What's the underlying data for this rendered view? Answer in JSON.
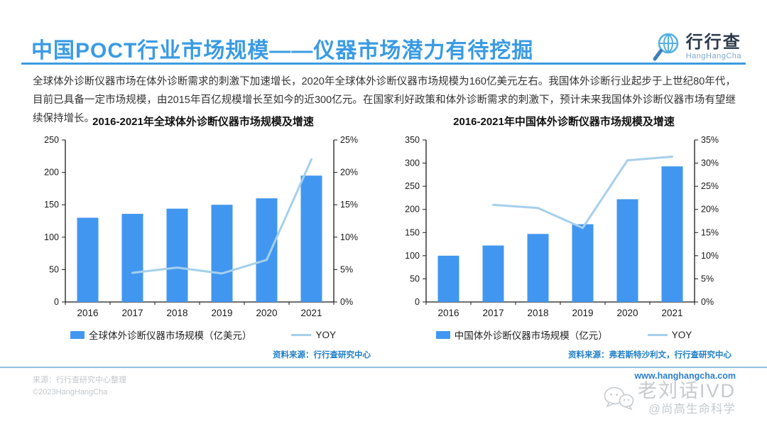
{
  "header": {
    "title": "中国POCT行业市场规模——仪器市场潜力有待挖掘",
    "logo_name": "行行查",
    "logo_sub": "HangHangCha"
  },
  "intro": "全球体外诊断仪器市场在体外诊断需求的刺激下加速增长，2020年全球体外诊断仪器市场规模为160亿美元左右。我国体外诊断行业起步于上世纪80年代，目前已具备一定市场规模，由2015年百亿规模增长至如今的近300亿元。在国家利好政策和体外诊断需求的刺激下，预计未来我国体外诊断仪器市场有望继续保持增长。",
  "palette": {
    "bar": "#4197f0",
    "line": "#a6cfec",
    "accent": "#3a9be4",
    "source_blue": "#1e7ec8",
    "axis": "#1a1a1a"
  },
  "chart_data": [
    {
      "type": "bar",
      "title": "2016-2021年全球体外诊断仪器市场规模及增速",
      "categories": [
        "2016",
        "2017",
        "2018",
        "2019",
        "2020",
        "2021"
      ],
      "series": [
        {
          "name": "全球体外诊断仪器市场规模（亿美元）",
          "kind": "bar",
          "axis": "left",
          "values": [
            130,
            136,
            144,
            150,
            160,
            195
          ]
        },
        {
          "name": "YOY",
          "kind": "line",
          "axis": "right",
          "values": [
            null,
            4.5,
            5.3,
            4.4,
            6.5,
            22
          ]
        }
      ],
      "left_axis": {
        "min": 0,
        "max": 250,
        "step": 50,
        "suffix": ""
      },
      "right_axis": {
        "min": 0,
        "max": 25,
        "step": 5,
        "suffix": "%"
      },
      "grid": false,
      "legend_position": "bottom",
      "source": "资料来源：行行查研究中心"
    },
    {
      "type": "bar",
      "title": "2016-2021年中国体外诊断仪器市场规模及增速",
      "categories": [
        "2016",
        "2017",
        "2018",
        "2019",
        "2020",
        "2021"
      ],
      "series": [
        {
          "name": "中国体外诊断仪器市场规模（亿元）",
          "kind": "bar",
          "axis": "left",
          "values": [
            100,
            122,
            147,
            168,
            222,
            293
          ]
        },
        {
          "name": "YOY",
          "kind": "line",
          "axis": "right",
          "values": [
            null,
            21,
            20.3,
            16,
            30.6,
            31.4
          ]
        }
      ],
      "left_axis": {
        "min": 0,
        "max": 350,
        "step": 50,
        "suffix": ""
      },
      "right_axis": {
        "min": 0,
        "max": 35,
        "step": 5,
        "suffix": "%"
      },
      "grid": false,
      "legend_position": "bottom",
      "source": "资料来源：弗若斯特沙利文，行行查研究中心"
    }
  ],
  "footer": {
    "left_line1": "来源：行行查研究中心整理",
    "left_line2": "©2023HangHangCha",
    "url": "www.hanghangcha.com",
    "watermark_big": "老刘话IVD",
    "watermark_small": "@尚高生命科学"
  }
}
